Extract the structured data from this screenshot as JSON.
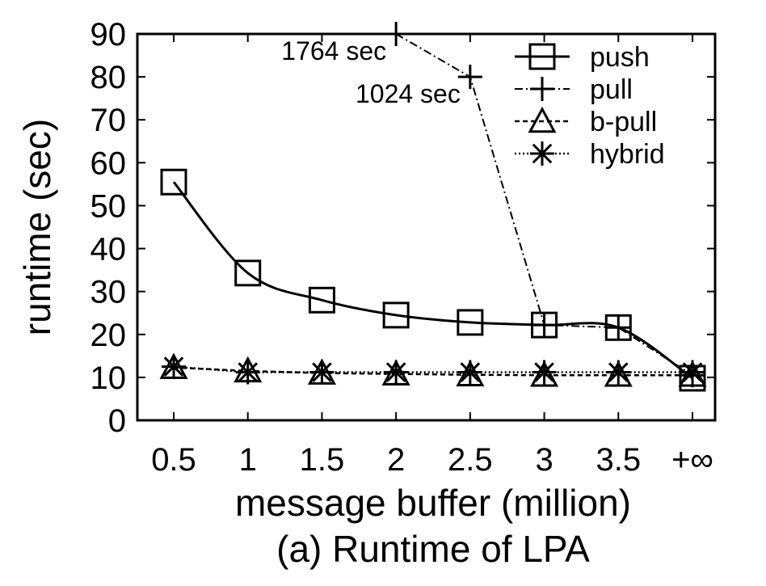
{
  "chart_data": {
    "type": "line",
    "title": "",
    "caption": "(a) Runtime of LPA",
    "xlabel": "message buffer (million)",
    "ylabel": "runtime (sec)",
    "categories": [
      "0.5",
      "1",
      "1.5",
      "2",
      "2.5",
      "3",
      "3.5",
      "+∞"
    ],
    "ylim": [
      0,
      90
    ],
    "yticks": [
      0,
      10,
      20,
      30,
      40,
      50,
      60,
      70,
      80,
      90
    ],
    "grid": false,
    "legend_position": "top-right",
    "series": [
      {
        "name": "push",
        "marker": "square",
        "dash": "solid",
        "values": [
          55.5,
          34.3,
          28.0,
          24.5,
          22.8,
          22.2,
          21.6,
          9.8
        ]
      },
      {
        "name": "pull",
        "marker": "plus",
        "dash": "dashdot",
        "values": [
          null,
          null,
          null,
          90,
          80,
          22.2,
          21.6,
          10.5
        ]
      },
      {
        "name": "b-pull",
        "marker": "triangle",
        "dash": "dashed",
        "values": [
          12.3,
          11.5,
          11.0,
          10.8,
          10.6,
          10.5,
          10.5,
          10.5
        ]
      },
      {
        "name": "hybrid",
        "marker": "star",
        "dash": "dotted",
        "values": [
          12.5,
          11.2,
          11.2,
          11.2,
          11.2,
          11.2,
          11.2,
          11.2
        ]
      }
    ],
    "annotations": [
      {
        "text": "1764 sec",
        "category": "2",
        "value": 90
      },
      {
        "text": "1024 sec",
        "category": "2.5",
        "value": 80
      }
    ]
  }
}
